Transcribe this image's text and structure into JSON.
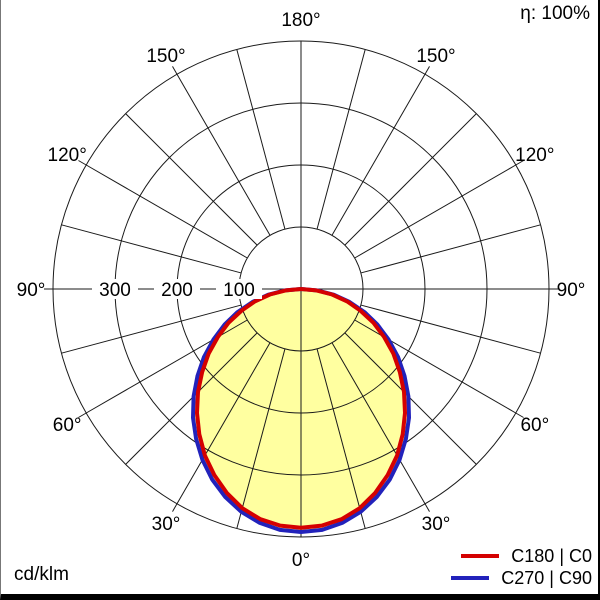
{
  "chart": {
    "efficiency_label": "η: 100%",
    "unit_label": "cd/klm",
    "legend": [
      {
        "label": "C180 | C0",
        "color": "#d40000"
      },
      {
        "label": "C270 | C90",
        "color": "#2222bb"
      }
    ]
  },
  "chart_data": {
    "type": "polar",
    "description": "Luminous intensity distribution polar curve, 0° at bottom, 180° at top",
    "unit": "cd/klm",
    "efficiency_percent": 100,
    "angle_label_values_deg": [
      0,
      30,
      60,
      90,
      120,
      150,
      180
    ],
    "angle_label_suffix": "°",
    "angle_grid_step_deg": 15,
    "radial_ticks": [
      100,
      200,
      300
    ],
    "radial_max": 400,
    "inner_ring_value": 100,
    "fill_color": "#ffffa0",
    "grid_color": "#1a1a1a",
    "gamma_deg": [
      0,
      5,
      10,
      15,
      20,
      25,
      30,
      35,
      40,
      45,
      50,
      55,
      60,
      65,
      70,
      75,
      80,
      85,
      90
    ],
    "series": [
      {
        "name": "C180 | C0",
        "color": "#d40000",
        "stroke_width": 4,
        "values": [
          385,
          383,
          377,
          366,
          350,
          331,
          310,
          286,
          261,
          235,
          208,
          182,
          155,
          129,
          102,
          77,
          51,
          25,
          0
        ]
      },
      {
        "name": "C270 | C90",
        "color": "#2222bb",
        "stroke_width": 4,
        "values": [
          392,
          390,
          383,
          372,
          357,
          339,
          318,
          295,
          271,
          245,
          218,
          191,
          163,
          136,
          109,
          81,
          54,
          27,
          0
        ]
      }
    ]
  }
}
